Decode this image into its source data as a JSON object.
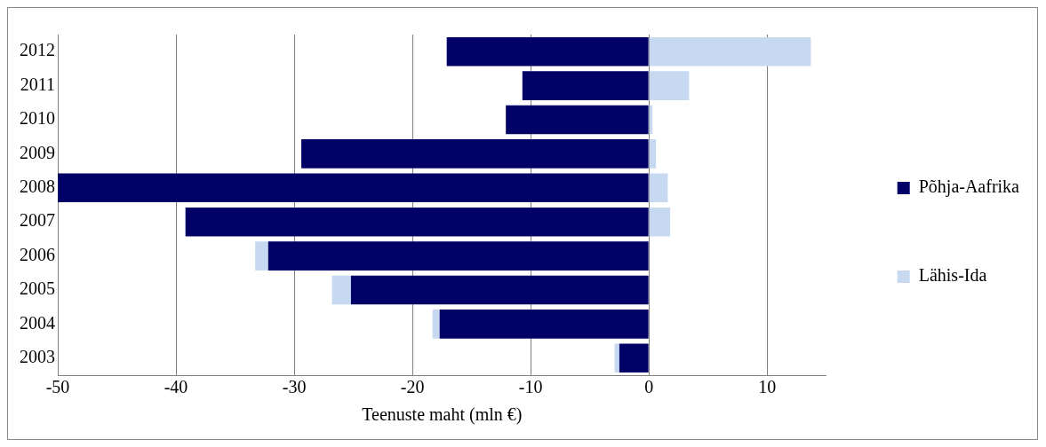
{
  "chart_data": {
    "type": "bar",
    "orientation": "horizontal",
    "stacked": true,
    "xlabel": "Teenuste maht (mln €)",
    "categories": [
      "2012",
      "2011",
      "2010",
      "2009",
      "2008",
      "2007",
      "2006",
      "2005",
      "2004",
      "2003"
    ],
    "series": [
      {
        "name": "Põhja-Aafrika",
        "color": "#000066",
        "values": [
          -17.1,
          -10.7,
          -12.1,
          -29.4,
          -50,
          -39.2,
          -32.2,
          -25.2,
          -17.7,
          -2.5
        ]
      },
      {
        "name": "Lähis-Ida",
        "color": "#c6d9f1",
        "values": [
          13.7,
          3.4,
          0.3,
          0.6,
          1.6,
          1.8,
          -1.1,
          -1.6,
          -0.6,
          -0.4
        ]
      }
    ],
    "xlim": [
      -50,
      15
    ],
    "xticks": [
      -50,
      -40,
      -30,
      -20,
      -10,
      0,
      10
    ],
    "grid": "x",
    "legend": "right"
  }
}
